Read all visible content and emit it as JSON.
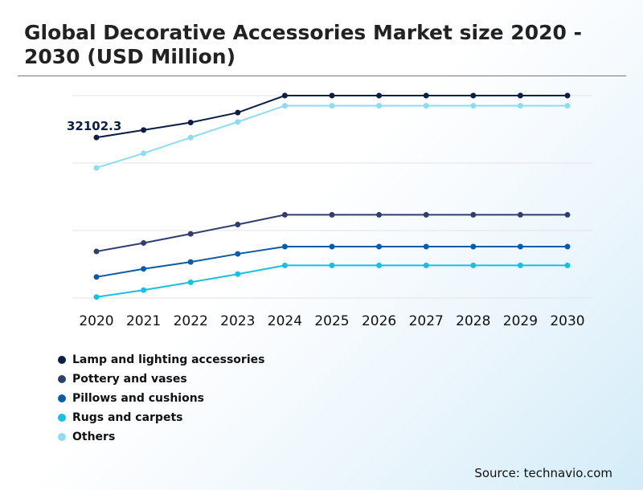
{
  "title": "Global Decorative Accessories Market size 2020 - 2030 (USD Million)",
  "source": "Source: technavio.com",
  "chart_data": {
    "type": "line",
    "title": "Global Decorative Accessories Market size 2020 - 2030 (USD Million)",
    "xlabel": "",
    "ylabel": "",
    "x": [
      "2020",
      "2021",
      "2022",
      "2023",
      "2024",
      "2025",
      "2026",
      "2027",
      "2028",
      "2029",
      "2030"
    ],
    "ylim": [
      0,
      100
    ],
    "grid": true,
    "legend_position": "bottom-left",
    "annotations": [
      {
        "text": "32102.3",
        "series": "Lamp and lighting accessories",
        "x": "2020"
      }
    ],
    "series": [
      {
        "name": "Lamp and lighting accessories",
        "color": "#0b1f44",
        "values": [
          79.3,
          83.0,
          86.7,
          91.6,
          100,
          100,
          100,
          100,
          100,
          100,
          100
        ]
      },
      {
        "name": "Pottery and vases",
        "color": "#2e3f6e",
        "values": [
          23.0,
          27.2,
          31.7,
          36.3,
          41.1,
          41.1,
          41.1,
          41.1,
          41.1,
          41.1,
          41.1
        ]
      },
      {
        "name": "Pillows and cushions",
        "color": "#0e5aa7",
        "values": [
          10.4,
          14.4,
          17.8,
          21.8,
          25.4,
          25.4,
          25.4,
          25.4,
          25.4,
          25.4,
          25.4
        ]
      },
      {
        "name": "Rugs and carpets",
        "color": "#16c1e0",
        "values": [
          0.5,
          3.9,
          7.8,
          11.8,
          16.1,
          16.1,
          16.1,
          16.1,
          16.1,
          16.1,
          16.1
        ]
      },
      {
        "name": "Others",
        "color": "#8ddcef",
        "values": [
          64.3,
          71.5,
          79.3,
          87.0,
          95.0,
          95.0,
          95.0,
          95.0,
          95.0,
          95.0,
          95.0
        ]
      }
    ]
  }
}
